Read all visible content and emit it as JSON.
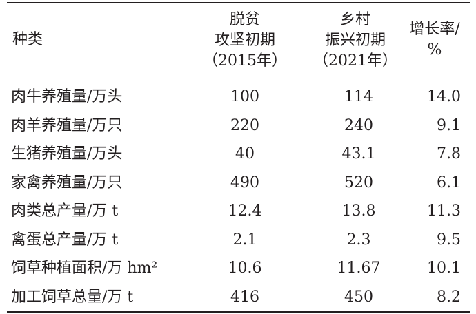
{
  "header": {
    "type": "种类",
    "col1": [
      "脱贫",
      "攻坚初期",
      "（2015年）"
    ],
    "col2": [
      "乡村",
      "振兴初期",
      "（2021年）"
    ],
    "col3": [
      "增长率/",
      "%"
    ]
  },
  "rows": [
    {
      "name": "肉牛养殖量/万头",
      "v1": "100",
      "v2": "114",
      "v3": "14.0"
    },
    {
      "name": "肉羊养殖量/万只",
      "v1": "220",
      "v2": "240",
      "v3": "9.1"
    },
    {
      "name": "生猪养殖量/万头",
      "v1": "40",
      "v2": "43.1",
      "v3": "7.8"
    },
    {
      "name": "家禽养殖量/万只",
      "v1": "490",
      "v2": "520",
      "v3": "6.1"
    },
    {
      "name": "肉类总产量/万 t",
      "v1": "12.4",
      "v2": "13.8",
      "v3": "11.3"
    },
    {
      "name": "禽蛋总产量/万 t",
      "v1": "2.1",
      "v2": "2.3",
      "v3": "9.5"
    },
    {
      "name": "饲草种植面积/万 hm²",
      "v1": "10.6",
      "v2": "11.67",
      "v3": "10.1"
    },
    {
      "name": "加工饲草总量/万 t",
      "v1": "416",
      "v2": "450",
      "v3": "8.2"
    }
  ]
}
